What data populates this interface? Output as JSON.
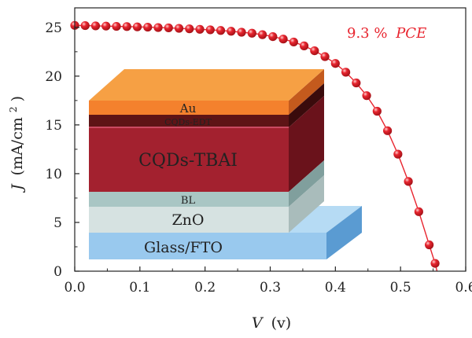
{
  "chart_data": {
    "type": "scatter",
    "xlabel_var": "V",
    "xlabel_unit": "(v)",
    "ylabel_var": "J",
    "ylabel_unit": "(mA/cm",
    "ylabel_sup": "2",
    "ylabel_close": ")",
    "xlim": [
      0,
      0.6
    ],
    "ylim": [
      0,
      27
    ],
    "x_ticks": [
      "0.0",
      "0.1",
      "0.2",
      "0.3",
      "0.4",
      "0.5",
      "0.6"
    ],
    "y_ticks": [
      "0",
      "5",
      "10",
      "15",
      "20",
      "25"
    ],
    "annotation_value": "9.3 %",
    "annotation_label": "PCE",
    "series_color": "#e8252f",
    "points": [
      {
        "x": 0.0,
        "y": 25.2
      },
      {
        "x": 0.016,
        "y": 25.18
      },
      {
        "x": 0.032,
        "y": 25.15
      },
      {
        "x": 0.048,
        "y": 25.13
      },
      {
        "x": 0.064,
        "y": 25.1
      },
      {
        "x": 0.08,
        "y": 25.08
      },
      {
        "x": 0.096,
        "y": 25.05
      },
      {
        "x": 0.112,
        "y": 25.02
      },
      {
        "x": 0.128,
        "y": 24.98
      },
      {
        "x": 0.144,
        "y": 24.95
      },
      {
        "x": 0.16,
        "y": 24.9
      },
      {
        "x": 0.176,
        "y": 24.85
      },
      {
        "x": 0.192,
        "y": 24.8
      },
      {
        "x": 0.208,
        "y": 24.75
      },
      {
        "x": 0.224,
        "y": 24.68
      },
      {
        "x": 0.24,
        "y": 24.6
      },
      {
        "x": 0.256,
        "y": 24.5
      },
      {
        "x": 0.272,
        "y": 24.4
      },
      {
        "x": 0.288,
        "y": 24.25
      },
      {
        "x": 0.304,
        "y": 24.05
      },
      {
        "x": 0.32,
        "y": 23.8
      },
      {
        "x": 0.336,
        "y": 23.5
      },
      {
        "x": 0.352,
        "y": 23.1
      },
      {
        "x": 0.368,
        "y": 22.6
      },
      {
        "x": 0.384,
        "y": 22.0
      },
      {
        "x": 0.4,
        "y": 21.3
      },
      {
        "x": 0.416,
        "y": 20.4
      },
      {
        "x": 0.432,
        "y": 19.3
      },
      {
        "x": 0.448,
        "y": 18.0
      },
      {
        "x": 0.464,
        "y": 16.4
      },
      {
        "x": 0.48,
        "y": 14.4
      },
      {
        "x": 0.496,
        "y": 12.0
      },
      {
        "x": 0.512,
        "y": 9.2
      },
      {
        "x": 0.528,
        "y": 6.1
      },
      {
        "x": 0.544,
        "y": 2.7
      },
      {
        "x": 0.553,
        "y": 0.8
      }
    ]
  },
  "device_stack": {
    "layers": [
      {
        "id": "au",
        "label": "Au",
        "front": "#f4812d",
        "side": "#c45a1d",
        "top": "#f6a044"
      },
      {
        "id": "edt",
        "label": "CQDs-EDT",
        "front": "#5e1416",
        "side": "#3a0b0c"
      },
      {
        "id": "tbai",
        "label": "CQDs-TBAI",
        "front": "#a3212f",
        "side": "#6a121b"
      },
      {
        "id": "bl",
        "label": "BL",
        "front": "#a9c6c4",
        "side": "#809f9d"
      },
      {
        "id": "zno",
        "label": "ZnO",
        "front": "#d6e2e1",
        "side": "#a9bcbb"
      },
      {
        "id": "fto",
        "label": "Glass/FTO",
        "front": "#99c9ee",
        "side": "#5a9bd2",
        "top": "#b6dbf4"
      }
    ]
  }
}
